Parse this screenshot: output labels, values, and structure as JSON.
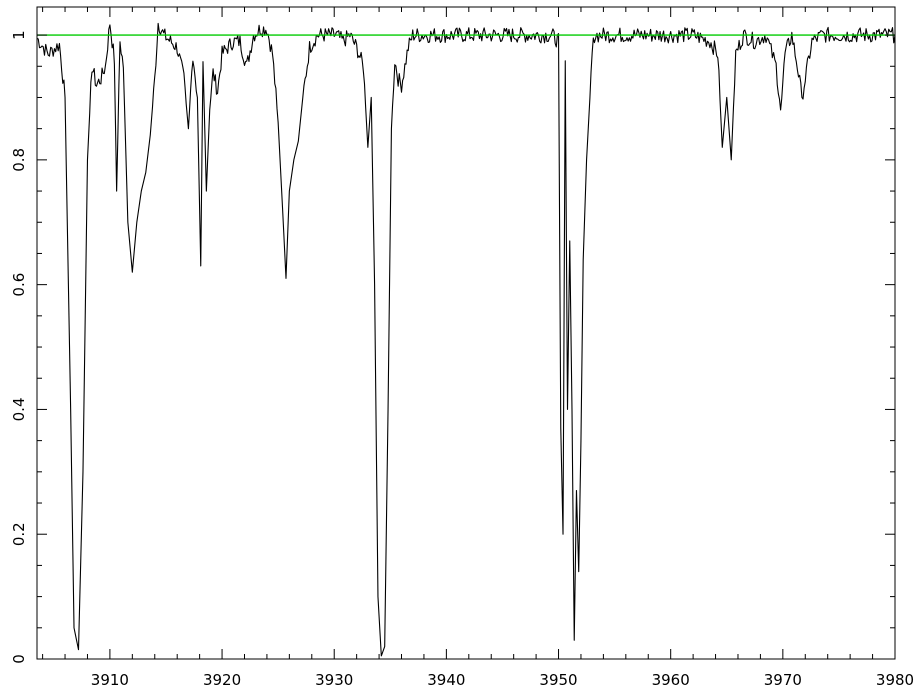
{
  "chart_data": {
    "type": "line",
    "title": "",
    "xlabel": "",
    "ylabel": "",
    "xlim": [
      3903.5,
      3980
    ],
    "ylim": [
      0,
      1.045
    ],
    "grid": false,
    "x_ticks": [
      3910,
      3920,
      3930,
      3940,
      3950,
      3960,
      3970,
      3980
    ],
    "x_tick_labels": [
      "3910",
      "3920",
      "3930",
      "3940",
      "3950",
      "3960",
      "3970",
      "3980"
    ],
    "y_ticks": [
      0,
      0.2,
      0.4,
      0.6,
      0.8,
      1
    ],
    "y_tick_labels": [
      "0",
      "0.2",
      "0.4",
      "0.6",
      "0.8",
      "1"
    ],
    "colors": {
      "spectrum": "#000000",
      "continuum": "#00cc00"
    },
    "series": [
      {
        "role": "continuum",
        "x": [
          3903.5,
          3980
        ],
        "y": [
          1.0,
          1.0
        ]
      },
      {
        "role": "spectrum",
        "x": [
          3903.5,
          3904.5,
          3905.5,
          3906.0,
          3906.5,
          3906.8,
          3907.2,
          3907.6,
          3908.0,
          3908.4,
          3908.8,
          3909.2,
          3909.6,
          3910.0,
          3910.4,
          3910.6,
          3910.9,
          3911.2,
          3911.6,
          3912.0,
          3912.4,
          3912.8,
          3913.2,
          3913.6,
          3914.0,
          3914.3,
          3914.8,
          3915.4,
          3916.0,
          3916.6,
          3917.0,
          3917.4,
          3917.8,
          3918.1,
          3918.3,
          3918.6,
          3918.9,
          3919.2,
          3919.6,
          3920.0,
          3920.5,
          3921.0,
          3921.6,
          3922.2,
          3922.8,
          3923.4,
          3924.0,
          3924.5,
          3925.0,
          3925.4,
          3925.7,
          3926.0,
          3926.4,
          3926.8,
          3927.2,
          3927.8,
          3928.5,
          3929.0,
          3929.6,
          3930.2,
          3930.8,
          3931.4,
          3932.0,
          3932.6,
          3933.0,
          3933.3,
          3933.6,
          3933.9,
          3934.2,
          3934.5,
          3934.8,
          3935.1,
          3935.4,
          3935.7,
          3936.0,
          3936.3,
          3936.6,
          3937.0,
          3937.6,
          3938.5,
          3940.0,
          3942.0,
          3944.0,
          3946.0,
          3948.0,
          3949.4,
          3950.0,
          3950.2,
          3950.4,
          3950.6,
          3950.8,
          3951.0,
          3951.2,
          3951.4,
          3951.6,
          3951.8,
          3952.0,
          3952.2,
          3952.5,
          3952.8,
          3953.0,
          3953.2,
          3954.0,
          3956.0,
          3958.0,
          3960.0,
          3962.0,
          3963.5,
          3964.2,
          3964.6,
          3965.0,
          3965.4,
          3965.8,
          3966.5,
          3967.5,
          3968.5,
          3969.4,
          3969.8,
          3970.2,
          3970.8,
          3971.3,
          3971.7,
          3972.1,
          3972.6,
          3973.5,
          3975.0,
          3977.0,
          3979.0,
          3980.0
        ],
        "y": [
          0.995,
          0.97,
          0.985,
          0.9,
          0.4,
          0.05,
          0.015,
          0.3,
          0.8,
          0.95,
          0.92,
          0.93,
          0.95,
          1.02,
          0.96,
          0.75,
          0.99,
          0.95,
          0.7,
          0.62,
          0.7,
          0.75,
          0.78,
          0.84,
          0.93,
          1.02,
          1.0,
          0.99,
          0.98,
          0.93,
          0.85,
          0.97,
          0.9,
          0.63,
          0.96,
          0.75,
          0.88,
          0.94,
          0.91,
          0.97,
          0.98,
          0.99,
          0.99,
          0.95,
          1.0,
          1.01,
          1.01,
          0.97,
          0.86,
          0.72,
          0.61,
          0.75,
          0.8,
          0.83,
          0.9,
          0.98,
          1.0,
          1.0,
          1.0,
          1.0,
          0.99,
          1.0,
          0.98,
          0.95,
          0.82,
          0.9,
          0.6,
          0.1,
          0.005,
          0.02,
          0.4,
          0.85,
          0.96,
          0.93,
          0.92,
          0.95,
          0.98,
          1.0,
          1.0,
          1.0,
          1.0,
          1.0,
          1.0,
          1.0,
          1.0,
          1.0,
          0.99,
          0.37,
          0.2,
          0.95,
          0.4,
          0.67,
          0.4,
          0.03,
          0.27,
          0.14,
          0.35,
          0.64,
          0.8,
          0.9,
          0.97,
          1.0,
          1.0,
          1.0,
          1.0,
          1.0,
          1.0,
          0.99,
          0.97,
          0.82,
          0.9,
          0.8,
          0.97,
          1.0,
          0.99,
          1.0,
          0.95,
          0.88,
          0.97,
          1.0,
          0.95,
          0.9,
          0.94,
          0.99,
          1.0,
          1.0,
          1.0,
          1.0,
          1.0
        ]
      }
    ]
  }
}
